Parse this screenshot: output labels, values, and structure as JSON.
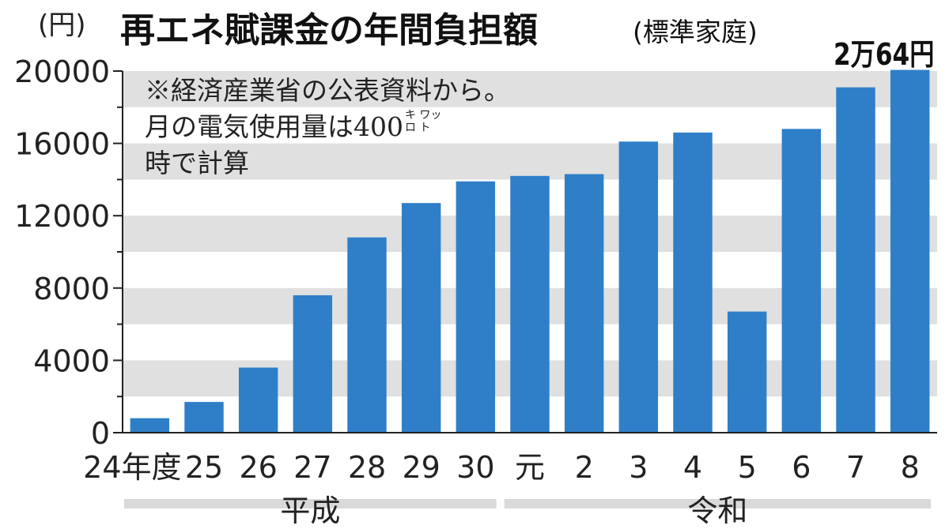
{
  "header": {
    "unit": "(円)",
    "title": "再エネ賦課金の年間負担額",
    "subtitle": "(標準家庭)",
    "last_value_label": "2万64円"
  },
  "note": {
    "line1": "※経済産業省の公表資料から。",
    "line2_prefix": "月の電気使用量は400",
    "unit_top": "キ ワッ",
    "unit_bottom": "ロ ト",
    "line3": "時で計算"
  },
  "colors": {
    "bar": "#2f7fc8",
    "band": "#e0e0e0",
    "axis": "#222222"
  },
  "chart_data": {
    "type": "bar",
    "categories": [
      "24年度",
      "25",
      "26",
      "27",
      "28",
      "29",
      "30",
      "元",
      "2",
      "3",
      "4",
      "5",
      "6",
      "7",
      "8"
    ],
    "values": [
      800,
      1700,
      3600,
      7600,
      10800,
      12700,
      13900,
      14200,
      14300,
      16100,
      16600,
      6700,
      16800,
      19100,
      20064
    ],
    "ylim": [
      0,
      20000
    ],
    "yticks": [
      "0",
      "4000",
      "8000",
      "12000",
      "16000",
      "20000"
    ],
    "eras": [
      {
        "name": "平成",
        "from": 0,
        "to": 6
      },
      {
        "name": "令和",
        "from": 7,
        "to": 14
      }
    ],
    "grid": "alternating bands"
  }
}
